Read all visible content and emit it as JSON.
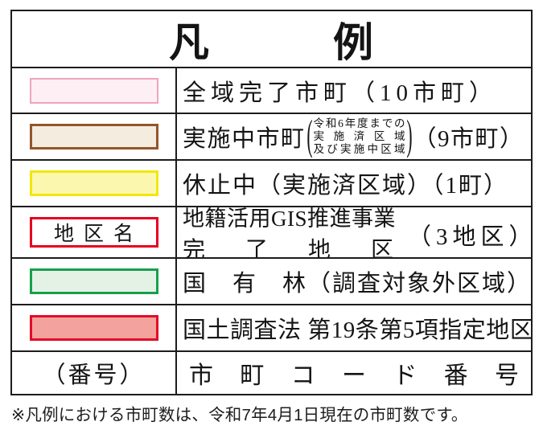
{
  "title": "凡　　　例",
  "footnote": "※凡例における市町数は、令和7年4月1日現在の市町数です。",
  "colors": {
    "table_border": "#1c1c1c",
    "pink_fill": "#fdeff4",
    "pink_border": "#f0a3c0",
    "tan_fill": "#f4ecdf",
    "tan_border": "#93552b",
    "yellow_fill": "#fbf7ae",
    "yellow_border": "#f2e70d",
    "white_fill": "#ffffff",
    "red_outline_border": "#e60021",
    "green_fill": "#e4f2e6",
    "green_border": "#16a04b",
    "salmon_fill": "#f4a29d",
    "salmon_border": "#e30b28"
  },
  "rows": [
    {
      "swatch": {
        "fill": "#fdeff4",
        "border": "#f0a3c0",
        "name": "pink"
      },
      "label": "全域完了市町（10市町）"
    },
    {
      "swatch": {
        "fill": "#f4ecdf",
        "border": "#93552b",
        "name": "tan"
      },
      "label_main": "実施中市町",
      "paren_open": "(",
      "paren_close": ")",
      "note_lines": [
        "令和6年度までの",
        "実施済区域",
        "及び実施中区域"
      ],
      "label_suffix": "（9市町）"
    },
    {
      "swatch": {
        "fill": "#fbf7ae",
        "border": "#f2e70d",
        "name": "yellow"
      },
      "label": "休止中（実施済区域）（1町）"
    },
    {
      "swatch": {
        "fill": "#ffffff",
        "border": "#e60021",
        "name": "red-outline",
        "text": "地区名"
      },
      "label_line1": "地籍活用GIS推進事業",
      "label_line2": "完了地区",
      "label_suffix": "（3地区）"
    },
    {
      "swatch": {
        "fill": "#e4f2e6",
        "border": "#16a04b",
        "name": "green"
      },
      "label": "国　有　林（調査対象外区域）"
    },
    {
      "swatch": {
        "fill": "#f4a29d",
        "border": "#e30b28",
        "name": "salmon"
      },
      "label": "国土調査法 第19条第5項指定地区"
    },
    {
      "left_text": "（番号）",
      "label": "市町コード番号"
    }
  ]
}
